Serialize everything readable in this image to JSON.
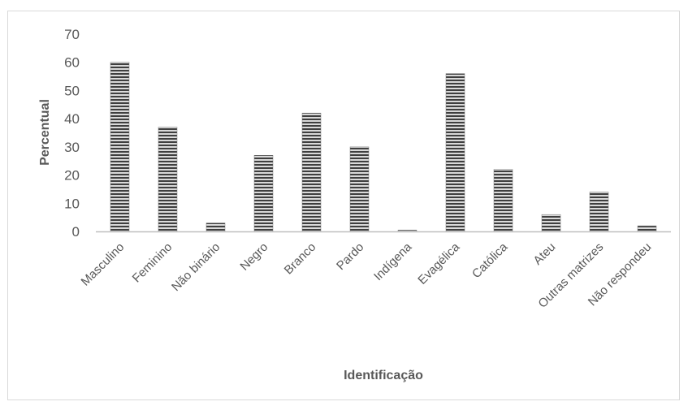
{
  "chart_data": {
    "type": "bar",
    "title": "",
    "xlabel": "Identificação",
    "ylabel": "Percentual",
    "ylim": [
      0,
      70
    ],
    "yticks": [
      0,
      10,
      20,
      30,
      40,
      50,
      60,
      70
    ],
    "grid": false,
    "legend": "none",
    "categories": [
      "Masculino",
      "Feminino",
      "Não binário",
      "Negro",
      "Branco",
      "Pardo",
      "Indígena",
      "Evagélica",
      "Católica",
      "Ateu",
      "Outras matrizes",
      "Não respondeu"
    ],
    "values": [
      60,
      37,
      3,
      27,
      42,
      30,
      0.5,
      56,
      22,
      6,
      14,
      2
    ],
    "bar_pattern": "horizontal-stripes",
    "colors": {
      "bar_dark": "#3f3f3f",
      "bar_light": "#d9d9d9",
      "axis": "#bfbfbf",
      "text": "#595959"
    }
  }
}
